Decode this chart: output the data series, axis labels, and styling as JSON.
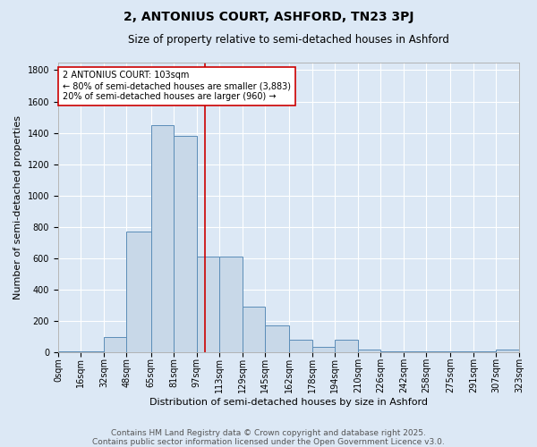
{
  "title": "2, ANTONIUS COURT, ASHFORD, TN23 3PJ",
  "subtitle": "Size of property relative to semi-detached houses in Ashford",
  "xlabel": "Distribution of semi-detached houses by size in Ashford",
  "ylabel": "Number of semi-detached properties",
  "footnote1": "Contains HM Land Registry data © Crown copyright and database right 2025.",
  "footnote2": "Contains public sector information licensed under the Open Government Licence v3.0.",
  "bin_edges": [
    0,
    16,
    32,
    48,
    65,
    81,
    97,
    113,
    129,
    145,
    162,
    178,
    194,
    210,
    226,
    242,
    258,
    275,
    291,
    307,
    323
  ],
  "bin_labels": [
    "0sqm",
    "16sqm",
    "32sqm",
    "48sqm",
    "65sqm",
    "81sqm",
    "97sqm",
    "113sqm",
    "129sqm",
    "145sqm",
    "162sqm",
    "178sqm",
    "194sqm",
    "210sqm",
    "226sqm",
    "242sqm",
    "258sqm",
    "275sqm",
    "291sqm",
    "307sqm",
    "323sqm"
  ],
  "bar_heights": [
    5,
    5,
    95,
    770,
    1450,
    1380,
    610,
    610,
    290,
    170,
    80,
    30,
    80,
    15,
    5,
    5,
    5,
    5,
    5,
    15
  ],
  "bar_color": "#c8d8e8",
  "bar_edge_color": "#5b8db8",
  "property_size": 103,
  "vline_color": "#cc0000",
  "ylim": [
    0,
    1850
  ],
  "yticks": [
    0,
    200,
    400,
    600,
    800,
    1000,
    1200,
    1400,
    1600,
    1800
  ],
  "annotation_title": "2 ANTONIUS COURT: 103sqm",
  "annotation_line1": "← 80% of semi-detached houses are smaller (3,883)",
  "annotation_line2": "20% of semi-detached houses are larger (960) →",
  "annotation_box_color": "#ffffff",
  "annotation_box_edge": "#cc0000",
  "bg_color": "#dce8f5",
  "plot_bg_color": "#dce8f5",
  "grid_color": "#ffffff",
  "title_fontsize": 10,
  "subtitle_fontsize": 8.5,
  "axis_label_fontsize": 8,
  "tick_fontsize": 7,
  "annotation_fontsize": 7,
  "footnote_fontsize": 6.5
}
